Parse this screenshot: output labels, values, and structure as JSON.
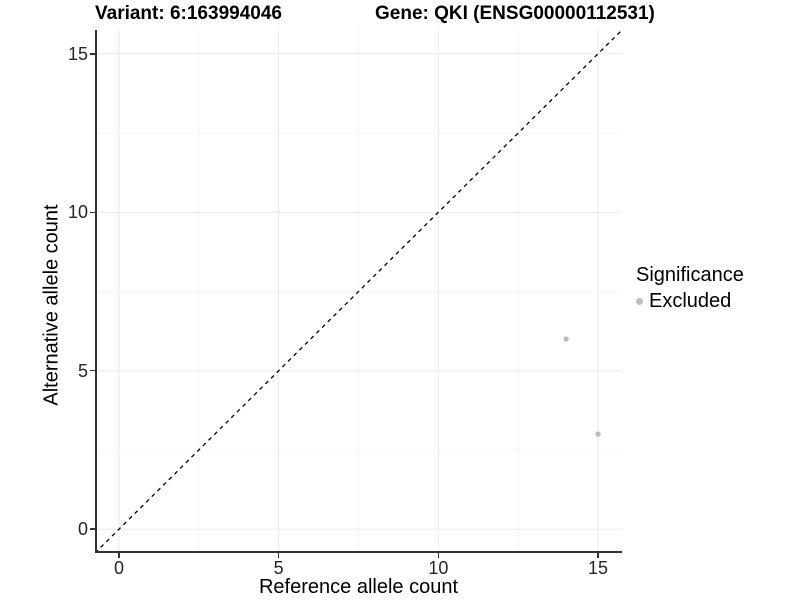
{
  "chart_data": {
    "type": "scatter",
    "titles": {
      "left": "Variant: 6:163994046",
      "right": "Gene: QKI (ENSG00000112531)"
    },
    "xlabel": "Reference allele count",
    "ylabel": "Alternative allele count",
    "xlim": [
      -0.75,
      15.75
    ],
    "ylim": [
      -0.75,
      15.75
    ],
    "x_ticks": [
      0,
      5,
      10,
      15
    ],
    "y_ticks": [
      0,
      5,
      10,
      15
    ],
    "x_minor_ticks": [
      2.5,
      7.5,
      12.5
    ],
    "y_minor_ticks": [
      2.5,
      7.5,
      12.5
    ],
    "grid": {
      "show": true,
      "major_color": "#e8e8e8",
      "minor_color": "#f4f4f4"
    },
    "reference_line": {
      "label": "y = x identity line",
      "style": "dashed",
      "color": "#000000",
      "from": [
        -0.75,
        -0.75
      ],
      "to": [
        15.75,
        15.75
      ]
    },
    "series": [
      {
        "name": "Excluded",
        "marker": "circle",
        "color": "#bdbdbd",
        "points": [
          [
            14,
            6
          ],
          [
            15,
            3
          ]
        ]
      }
    ],
    "legend": {
      "title": "Significance",
      "position": "right",
      "entries": [
        {
          "label": "Excluded",
          "color": "#bdbdbd"
        }
      ]
    },
    "colors": {
      "axis_line": "#333333",
      "tick_mark": "#333333",
      "tick_label": "#262626",
      "title_text": "#000000"
    }
  }
}
